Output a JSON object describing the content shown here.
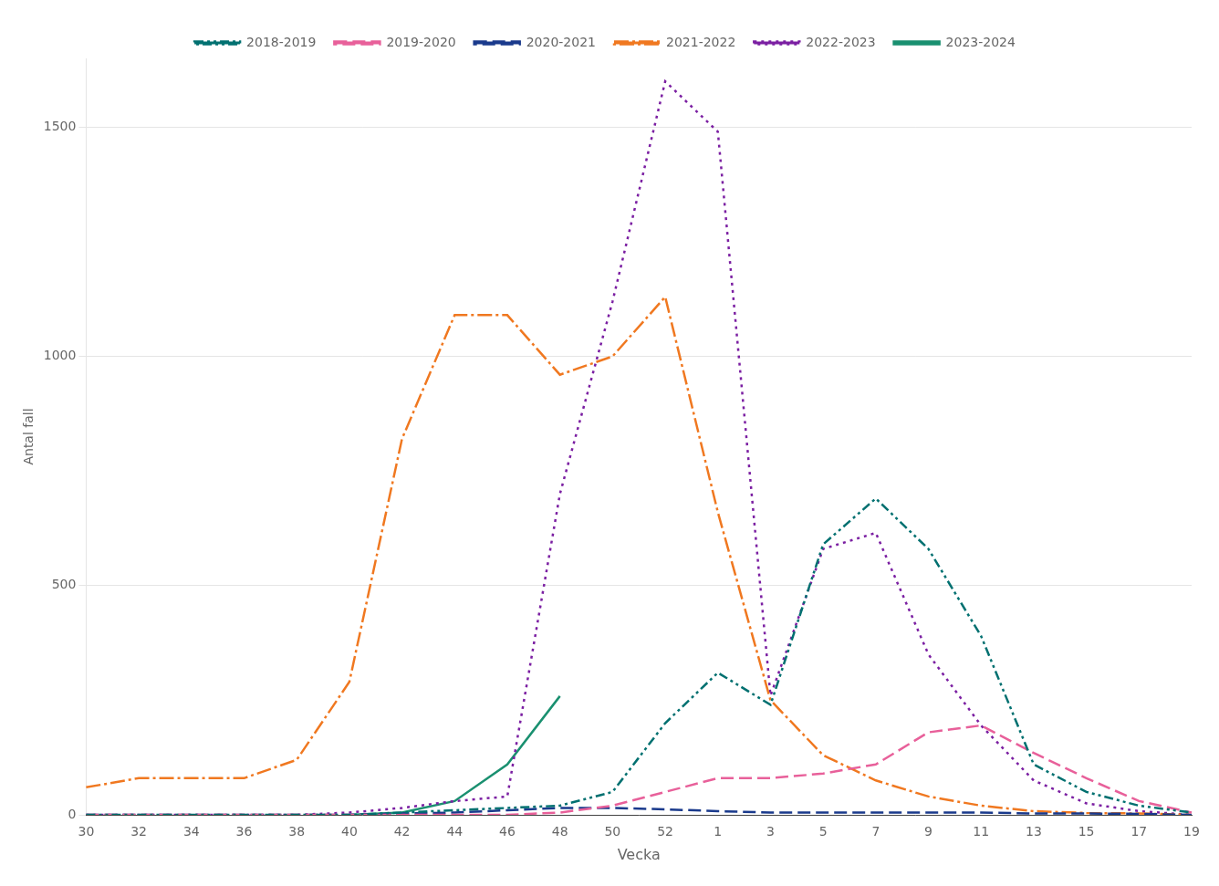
{
  "chart_data": {
    "type": "line",
    "x_label": "Vecka",
    "y_label": "Antal fall",
    "categories": [
      30,
      32,
      34,
      36,
      38,
      40,
      42,
      44,
      46,
      48,
      50,
      52,
      1,
      3,
      5,
      7,
      9,
      11,
      13,
      15,
      17,
      19
    ],
    "ylim": [
      0,
      1650
    ],
    "yticks": [
      0,
      500,
      1000,
      1500
    ],
    "grid": true,
    "legend": "top",
    "series": [
      {
        "name": "2018-2019",
        "color": "#007070",
        "line_style": "dashdotdot",
        "values": [
          0,
          0,
          0,
          0,
          0,
          0,
          5,
          10,
          15,
          20,
          50,
          200,
          310,
          240,
          590,
          690,
          580,
          390,
          110,
          50,
          20,
          5
        ]
      },
      {
        "name": "2019-2020",
        "color": "#e8609a",
        "line_style": "dashed",
        "values": [
          0,
          0,
          0,
          0,
          0,
          0,
          0,
          0,
          0,
          5,
          20,
          50,
          80,
          80,
          90,
          110,
          180,
          195,
          135,
          80,
          30,
          5
        ]
      },
      {
        "name": "2020-2021",
        "color": "#1a3a8c",
        "line_style": "dashed",
        "values": [
          0,
          0,
          0,
          0,
          0,
          0,
          3,
          5,
          10,
          15,
          15,
          12,
          8,
          5,
          5,
          5,
          5,
          5,
          3,
          3,
          2,
          0
        ]
      },
      {
        "name": "2021-2022",
        "color": "#f07820",
        "line_style": "dashdot",
        "values": [
          60,
          80,
          80,
          80,
          120,
          290,
          820,
          1090,
          1090,
          960,
          1000,
          1130,
          660,
          250,
          130,
          75,
          40,
          20,
          8,
          4,
          3,
          0
        ]
      },
      {
        "name": "2022-2023",
        "color": "#7b1fa2",
        "line_style": "dotted",
        "values": [
          0,
          0,
          0,
          0,
          0,
          5,
          15,
          30,
          40,
          700,
          1120,
          1600,
          1490,
          260,
          580,
          615,
          350,
          195,
          75,
          25,
          8,
          0
        ]
      },
      {
        "name": "2023-2024",
        "color": "#1a9070",
        "line_style": "solid",
        "values": [
          null,
          null,
          null,
          null,
          null,
          0,
          5,
          30,
          110,
          259,
          null,
          null,
          null,
          null,
          null,
          null,
          null,
          null,
          null,
          null,
          null,
          null
        ]
      }
    ]
  }
}
